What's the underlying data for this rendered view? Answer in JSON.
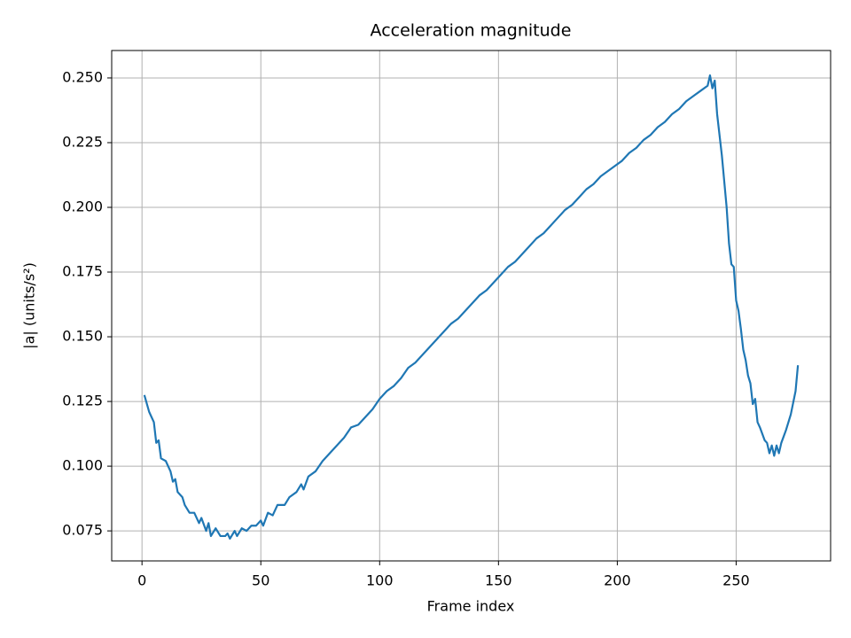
{
  "chart_data": {
    "type": "line",
    "title": "Acceleration magnitude",
    "x_label": "Frame index",
    "y_label": "|a| (units/s²)",
    "grid": true,
    "xlim": [
      -12.75,
      289.75
    ],
    "ylim": [
      0.0634,
      0.2606
    ],
    "xticks": [
      0,
      50,
      100,
      150,
      200,
      250
    ],
    "yticks": [
      0.075,
      {
        "value": 0.1,
        "label": "0.100"
      },
      0.125,
      {
        "value": 0.15,
        "label": "0.150"
      },
      0.175,
      {
        "value": 0.2,
        "label": "0.200"
      },
      0.225,
      {
        "value": 0.25,
        "label": "0.250"
      }
    ],
    "x": [
      1,
      3,
      5,
      6,
      7,
      8,
      10,
      12,
      13,
      14,
      15,
      17,
      18,
      20,
      22,
      24,
      25,
      27,
      28,
      29,
      31,
      33,
      35,
      36,
      37,
      39,
      40,
      42,
      44,
      46,
      48,
      50,
      51,
      53,
      55,
      57,
      60,
      62,
      65,
      67,
      68,
      70,
      73,
      76,
      79,
      82,
      85,
      88,
      91,
      94,
      97,
      100,
      103,
      106,
      109,
      112,
      115,
      118,
      121,
      124,
      127,
      130,
      133,
      136,
      139,
      142,
      145,
      148,
      151,
      154,
      157,
      160,
      163,
      166,
      169,
      172,
      175,
      178,
      181,
      184,
      187,
      190,
      193,
      196,
      199,
      202,
      205,
      208,
      211,
      214,
      217,
      220,
      223,
      226,
      229,
      232,
      235,
      238,
      239,
      240,
      241,
      242,
      244,
      246,
      247,
      248,
      249,
      250,
      251,
      252,
      253,
      254,
      255,
      256,
      257,
      258,
      259,
      260,
      262,
      263,
      264,
      265,
      266,
      267,
      268,
      269,
      271,
      273,
      275,
      276
    ],
    "series": [
      {
        "name": "acceleration",
        "color": "#1f77b4",
        "values": [
          0.1275,
          0.121,
          0.117,
          0.109,
          0.11,
          0.103,
          0.102,
          0.098,
          0.094,
          0.095,
          0.09,
          0.088,
          0.085,
          0.082,
          0.082,
          0.078,
          0.08,
          0.075,
          0.078,
          0.073,
          0.076,
          0.073,
          0.073,
          0.074,
          0.072,
          0.075,
          0.073,
          0.076,
          0.075,
          0.077,
          0.077,
          0.079,
          0.077,
          0.082,
          0.081,
          0.085,
          0.085,
          0.088,
          0.09,
          0.093,
          0.091,
          0.096,
          0.098,
          0.102,
          0.105,
          0.108,
          0.111,
          0.115,
          0.116,
          0.119,
          0.122,
          0.126,
          0.129,
          0.131,
          0.134,
          0.138,
          0.14,
          0.143,
          0.146,
          0.149,
          0.152,
          0.155,
          0.157,
          0.16,
          0.163,
          0.166,
          0.168,
          0.171,
          0.174,
          0.177,
          0.179,
          0.182,
          0.185,
          0.188,
          0.19,
          0.193,
          0.196,
          0.199,
          0.201,
          0.204,
          0.207,
          0.209,
          0.212,
          0.214,
          0.216,
          0.218,
          0.221,
          0.223,
          0.226,
          0.228,
          0.231,
          0.233,
          0.236,
          0.238,
          0.241,
          0.243,
          0.245,
          0.247,
          0.251,
          0.246,
          0.249,
          0.236,
          0.22,
          0.2,
          0.186,
          0.178,
          0.177,
          0.164,
          0.16,
          0.153,
          0.145,
          0.141,
          0.135,
          0.132,
          0.124,
          0.126,
          0.117,
          0.115,
          0.11,
          0.109,
          0.105,
          0.108,
          0.104,
          0.108,
          0.105,
          0.109,
          0.114,
          0.12,
          0.129,
          0.139
        ]
      }
    ]
  }
}
